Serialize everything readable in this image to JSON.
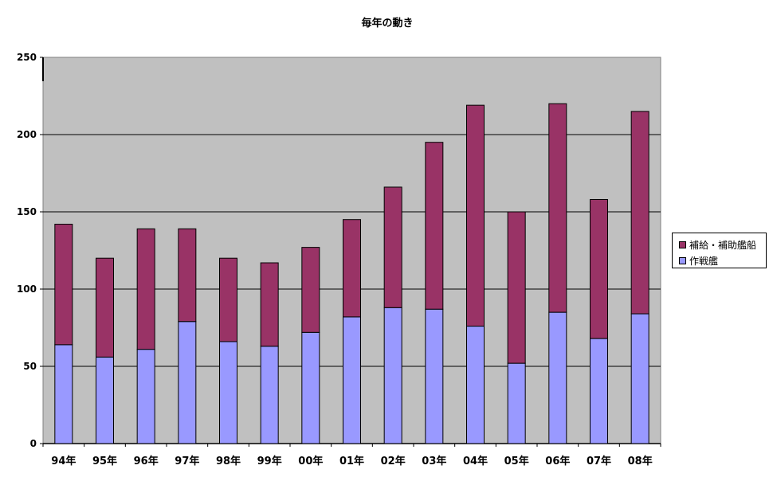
{
  "chart_data": {
    "type": "bar",
    "stacked": true,
    "title": "毎年の動き",
    "categories": [
      "94年",
      "95年",
      "96年",
      "97年",
      "98年",
      "99年",
      "00年",
      "01年",
      "02年",
      "03年",
      "04年",
      "05年",
      "06年",
      "07年",
      "08年"
    ],
    "series": [
      {
        "name": "作戦艦",
        "color": "#9999ff",
        "values": [
          64,
          56,
          61,
          79,
          66,
          63,
          72,
          82,
          88,
          87,
          76,
          52,
          85,
          68,
          84
        ]
      },
      {
        "name": "補給・補助艦船",
        "color": "#993366",
        "values": [
          78,
          64,
          78,
          60,
          54,
          54,
          55,
          63,
          78,
          108,
          143,
          98,
          135,
          90,
          131
        ]
      }
    ],
    "ylim": [
      0,
      250
    ],
    "yticks": [
      0,
      50,
      100,
      150,
      200,
      250
    ],
    "grid": true,
    "plot_background": "#c0c0c0",
    "legend_position": "right"
  }
}
